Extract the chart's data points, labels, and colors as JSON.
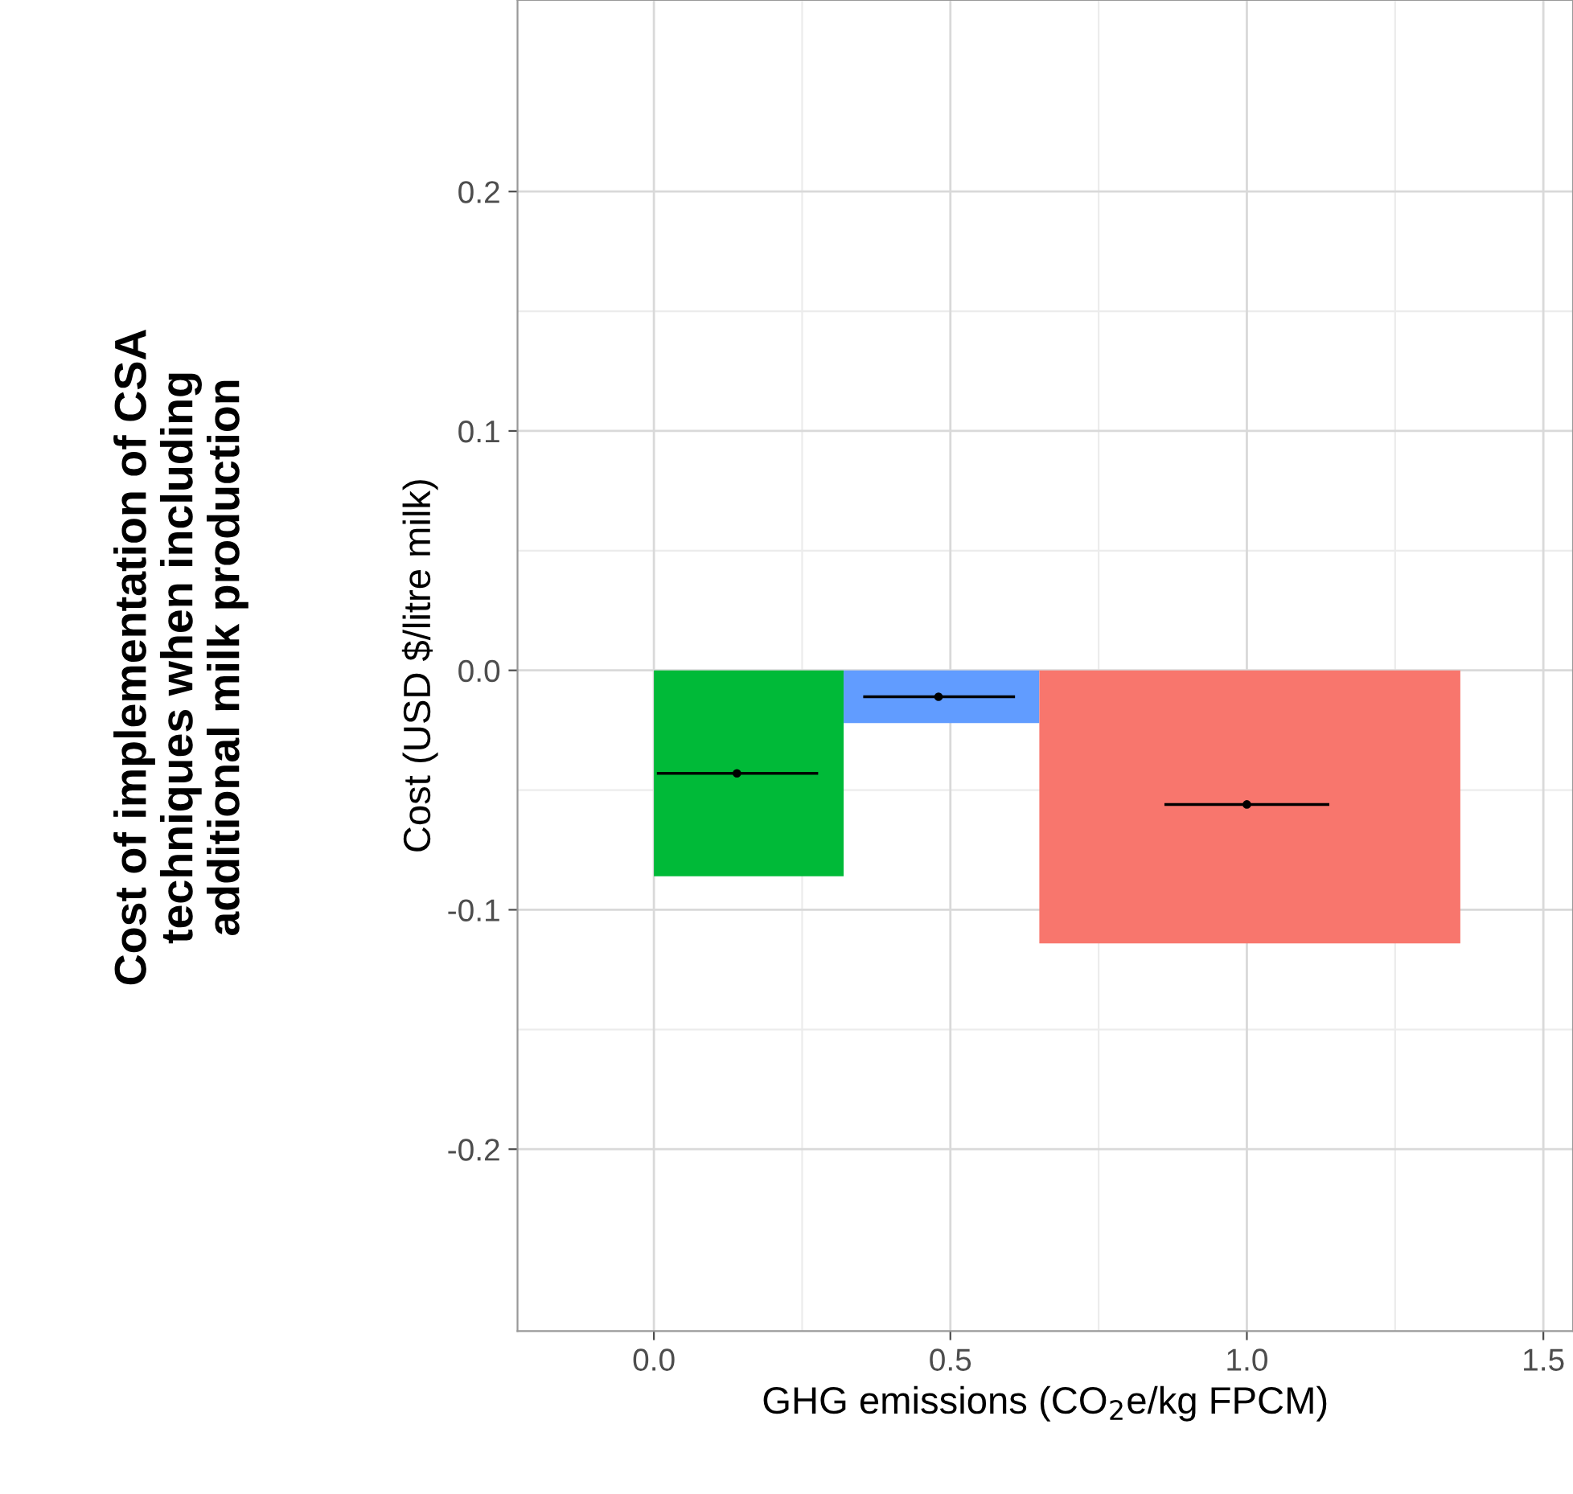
{
  "chart_data": {
    "type": "area",
    "xlabel": "GHG emissions (CO$_{2}$e/kg FPCM)",
    "ylabel": "Cost (USD $/litre milk)",
    "annotations": [
      "Cost of implementation of CSA\ntechniques when including\nadditional milk production"
    ],
    "series": [
      {
        "x": [
          0.0,
          0.32
        ],
        "values": [
          -0.086,
          -0.086
        ],
        "color": "#00ba38"
      },
      {
        "x": [
          0.32,
          0.65
        ],
        "values": [
          -0.022,
          -0.022
        ],
        "color": "#619cff"
      },
      {
        "x": [
          0.65,
          1.36
        ],
        "values": [
          -0.114,
          -0.114
        ],
        "color": "#f8766d"
      },
      {
        "type": "scatter",
        "x": [
          0.14,
          0.48,
          1.0
        ],
        "values": [
          -0.043,
          -0.011,
          -0.056
        ],
        "xerrors": [
          [
            0.005,
            0.277
          ],
          [
            0.353,
            0.609
          ],
          [
            0.861,
            1.139
          ]
        ],
        "color": "#000000",
        "marker": "circle"
      }
    ],
    "xlim": [
      -0.23,
      1.55
    ],
    "xticks": [
      {
        "value": 0,
        "label": "0.0"
      },
      0.5,
      {
        "value": 1,
        "label": "1.0"
      },
      1.5
    ],
    "ylim": [
      -0.276,
      0.28
    ],
    "yticks": [
      -0.2,
      -0.1,
      {
        "value": 0,
        "label": "0.0"
      },
      0.1,
      0.2
    ],
    "grid": true
  }
}
